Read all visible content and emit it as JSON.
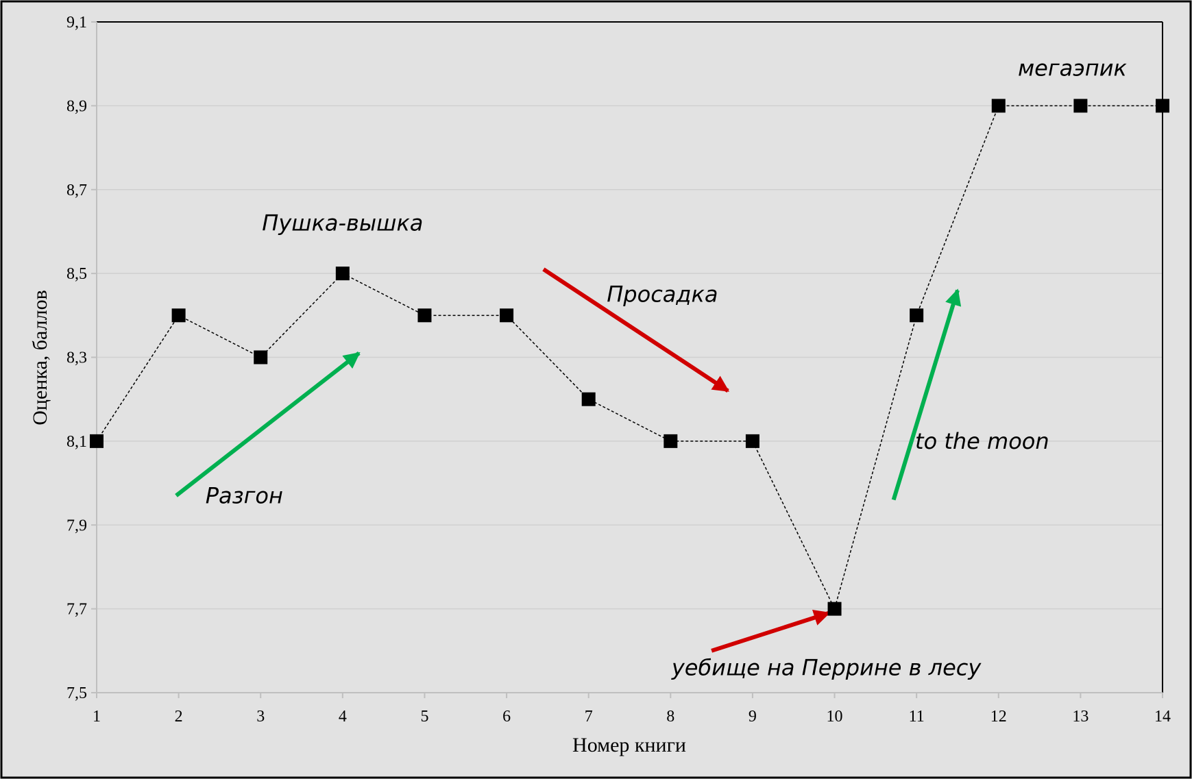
{
  "chart_data": {
    "type": "line",
    "xlabel": "Номер книги",
    "ylabel": "Оценка, баллов",
    "x": [
      1,
      2,
      3,
      4,
      5,
      6,
      7,
      8,
      9,
      10,
      11,
      12,
      13,
      14
    ],
    "series": [
      {
        "values": [
          8.1,
          8.4,
          8.3,
          8.5,
          8.4,
          8.4,
          8.2,
          8.1,
          8.1,
          7.7,
          8.4,
          8.9,
          8.9,
          8.9
        ]
      }
    ],
    "xlim": [
      1,
      14
    ],
    "ylim": [
      7.5,
      9.1
    ],
    "xticks": [
      "1",
      "2",
      "3",
      "4",
      "5",
      "6",
      "7",
      "8",
      "9",
      "10",
      "11",
      "12",
      "13",
      "14"
    ],
    "yticks": [
      "7,5",
      "7,7",
      "7,9",
      "8,1",
      "8,3",
      "8,5",
      "8,7",
      "8,9",
      "9,1"
    ],
    "grid": true,
    "line_style": "dashed",
    "marker": "square",
    "annotations": [
      {
        "text": "Пушка-вышка",
        "x": 4,
        "y": 8.62
      },
      {
        "text": "Разгон",
        "x": 2.8,
        "y": 7.97
      },
      {
        "text": "Просадка",
        "x": 7.9,
        "y": 8.45
      },
      {
        "text": "уебище на Перрине в лесу",
        "x": 9.9,
        "y": 7.56
      },
      {
        "text": "to the moon",
        "x": 11.8,
        "y": 8.1
      },
      {
        "text": "мегаэпик",
        "x": 12.9,
        "y": 8.99
      }
    ],
    "arrows": [
      {
        "from": [
          1.97,
          7.97
        ],
        "to": [
          4.2,
          8.31
        ],
        "color": "#00B050"
      },
      {
        "from": [
          6.45,
          8.51
        ],
        "to": [
          8.7,
          8.22
        ],
        "color": "#D00000"
      },
      {
        "from": [
          8.5,
          7.6
        ],
        "to": [
          9.93,
          7.69
        ],
        "color": "#D00000"
      },
      {
        "from": [
          10.72,
          7.96
        ],
        "to": [
          11.5,
          8.46
        ],
        "color": "#00B050"
      }
    ]
  }
}
